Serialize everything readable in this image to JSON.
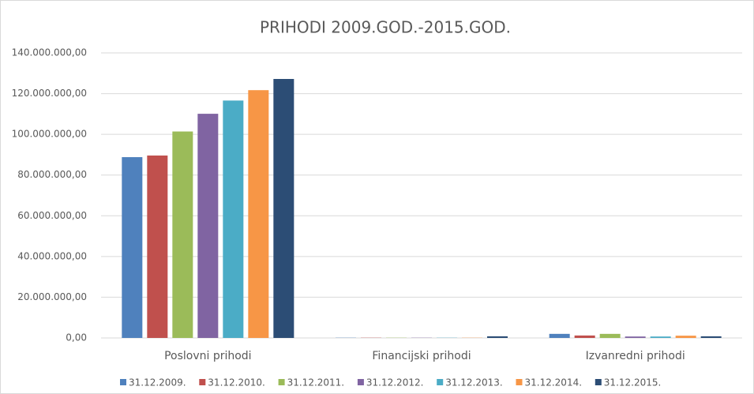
{
  "chart_data": {
    "type": "bar",
    "title": "PRIHODI 2009.GOD.-2015.GOD.",
    "categories": [
      "Poslovni prihodi",
      "Financijski prihodi",
      "Izvanredni prihodi"
    ],
    "series": [
      {
        "name": "31.12.2009.",
        "color": "#4f81bd",
        "values": [
          88800000,
          100000,
          2000000
        ]
      },
      {
        "name": "31.12.2010.",
        "color": "#c0504d",
        "values": [
          89600000,
          100000,
          1200000
        ]
      },
      {
        "name": "31.12.2011.",
        "color": "#9bbb59",
        "values": [
          101400000,
          100000,
          2000000
        ]
      },
      {
        "name": "31.12.2012.",
        "color": "#8064a2",
        "values": [
          110100000,
          100000,
          700000
        ]
      },
      {
        "name": "31.12.2013.",
        "color": "#4bacc6",
        "values": [
          116600000,
          100000,
          700000
        ]
      },
      {
        "name": "31.12.2014.",
        "color": "#f79646",
        "values": [
          121700000,
          100000,
          1100000
        ]
      },
      {
        "name": "31.12.2015.",
        "color": "#2c4d75",
        "values": [
          127200000,
          800000,
          800000
        ]
      }
    ],
    "ylim": [
      0,
      140000000
    ],
    "yticks": [
      {
        "value": 0,
        "label": "0,00"
      },
      {
        "value": 20000000,
        "label": "20.000.000,00"
      },
      {
        "value": 40000000,
        "label": "40.000.000,00"
      },
      {
        "value": 60000000,
        "label": "60.000.000,00"
      },
      {
        "value": 80000000,
        "label": "80.000.000,00"
      },
      {
        "value": 100000000,
        "label": "100.000.000,00"
      },
      {
        "value": 120000000,
        "label": "120.000.000,00"
      },
      {
        "value": 140000000,
        "label": "140.000.000,00"
      }
    ],
    "grid": true,
    "legend": "bottom"
  }
}
